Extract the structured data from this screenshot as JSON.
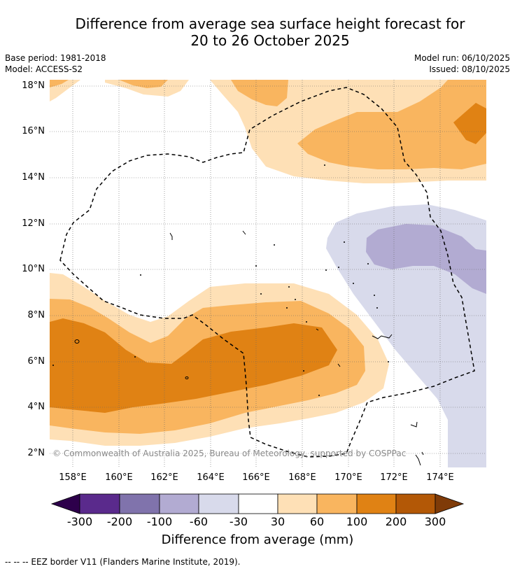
{
  "title": {
    "line1": "Difference from average sea surface height forecast for",
    "line2": "20 to 26 October 2025"
  },
  "meta": {
    "base_period": "Base period: 1981-2018",
    "model": "Model: ACCESS-S2",
    "model_run": "Model run: 06/10/2025",
    "issued": "Issued: 08/10/2025"
  },
  "axes": {
    "latitude_labels": [
      "18°N",
      "16°N",
      "14°N",
      "12°N",
      "10°N",
      "8°N",
      "6°N",
      "4°N",
      "2°N"
    ],
    "longitude_labels": [
      "158°E",
      "160°E",
      "162°E",
      "164°E",
      "166°E",
      "168°E",
      "170°E",
      "172°E",
      "174°E"
    ]
  },
  "copyright": "© Commonwealth of Australia 2025, Bureau of Meteorology, supported by COSPPac",
  "colorbar": {
    "ticks": [
      "-300",
      "-200",
      "-100",
      "-60",
      "-30",
      "30",
      "60",
      "100",
      "200",
      "300"
    ],
    "label": "Difference from average (mm)",
    "colors": {
      "under": "#2d004b",
      "m300_m200": "#5a2a8c",
      "m200_m100": "#8073ac",
      "m100_m60": "#b2abd2",
      "m60_m30": "#d8daeb",
      "m30_30": "#ffffff",
      "p30_60": "#fee0b6",
      "p60_100": "#f9b55f",
      "p100_200": "#e08214",
      "p200_300": "#b35806",
      "over": "#7f3b08"
    }
  },
  "footer": "--  --  -- EEZ border V11 (Flanders Marine Institute, 2019)."
}
